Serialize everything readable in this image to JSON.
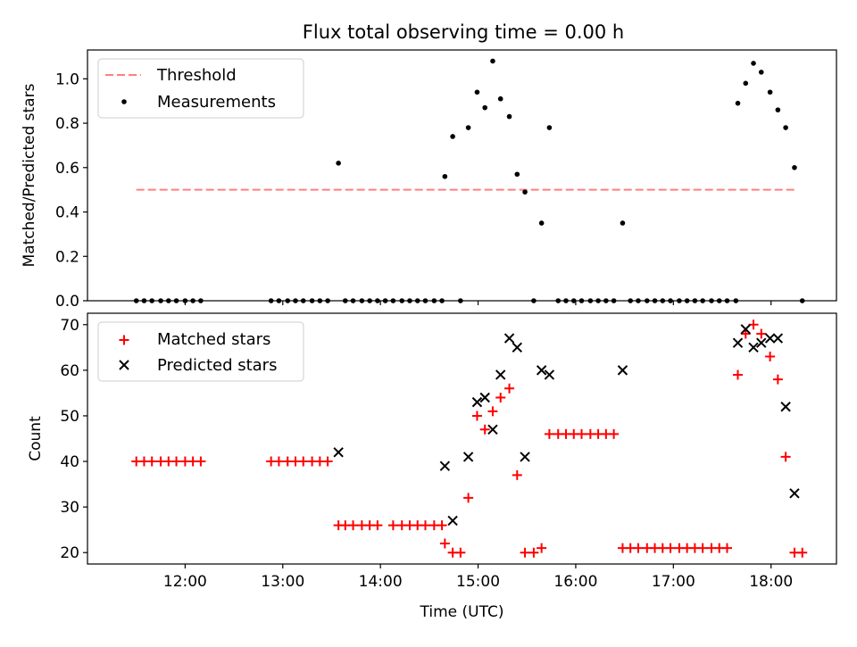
{
  "title": "Flux total observing time = 0.00 h",
  "colors": {
    "threshold": "#ff7f7f",
    "measurements": "#000000",
    "matched": "#ff0000",
    "predicted": "#000000"
  },
  "chart_data": [
    {
      "type": "scatter",
      "ylabel": "Matched/Predicted stars",
      "xlim": [
        11.0,
        18.67
      ],
      "ylim": [
        0.0,
        1.13
      ],
      "yticks": [
        "0.0",
        "0.2",
        "0.4",
        "0.6",
        "0.8",
        "1.0"
      ],
      "ytick_values": [
        0.0,
        0.2,
        0.4,
        0.6,
        0.8,
        1.0
      ],
      "legend_position": "upper-left",
      "threshold": {
        "name": "Threshold",
        "value": 0.5,
        "x_range": [
          11.5,
          18.27
        ]
      },
      "series": [
        {
          "name": "Measurements",
          "x": [
            11.5,
            11.58,
            11.66,
            11.75,
            11.83,
            11.91,
            12.0,
            12.08,
            12.16,
            12.88,
            12.96,
            13.05,
            13.13,
            13.21,
            13.3,
            13.38,
            13.46,
            13.57,
            13.64,
            13.72,
            13.81,
            13.89,
            13.97,
            14.05,
            14.13,
            14.22,
            14.3,
            14.38,
            14.46,
            14.55,
            14.63,
            14.66,
            14.74,
            14.82,
            14.9,
            14.99,
            15.07,
            15.15,
            15.23,
            15.32,
            15.4,
            15.48,
            15.57,
            15.65,
            15.73,
            15.82,
            15.9,
            15.98,
            16.06,
            16.15,
            16.23,
            16.31,
            16.39,
            16.48,
            16.56,
            16.64,
            16.73,
            16.81,
            16.89,
            16.97,
            17.06,
            17.14,
            17.22,
            17.3,
            17.39,
            17.47,
            17.55,
            17.64,
            17.66,
            17.74,
            17.82,
            17.9,
            17.99,
            18.07,
            18.15,
            18.24,
            18.32
          ],
          "y": [
            0,
            0,
            0,
            0,
            0,
            0,
            0,
            0,
            0,
            0,
            0,
            0,
            0,
            0,
            0,
            0,
            0,
            0.62,
            0,
            0,
            0,
            0,
            0,
            0,
            0,
            0,
            0,
            0,
            0,
            0,
            0,
            0.56,
            0.74,
            0,
            0.78,
            0.94,
            0.87,
            1.08,
            0.91,
            0.83,
            0.57,
            0.49,
            0,
            0.35,
            0.78,
            0,
            0,
            0,
            0,
            0,
            0,
            0,
            0,
            0.35,
            0,
            0,
            0,
            0,
            0,
            0,
            0,
            0,
            0,
            0,
            0,
            0,
            0,
            0,
            0.89,
            0.98,
            1.07,
            1.03,
            0.94,
            0.86,
            0.78,
            0.6,
            0
          ]
        }
      ]
    },
    {
      "type": "scatter",
      "xlabel": "Time (UTC)",
      "ylabel": "Count",
      "xlim": [
        11.0,
        18.67
      ],
      "ylim": [
        17.5,
        72.5
      ],
      "xticks": [
        "12:00",
        "13:00",
        "14:00",
        "15:00",
        "16:00",
        "17:00",
        "18:00"
      ],
      "xtick_values": [
        12,
        13,
        14,
        15,
        16,
        17,
        18
      ],
      "yticks": [
        "20",
        "30",
        "40",
        "50",
        "60",
        "70"
      ],
      "ytick_values": [
        20,
        30,
        40,
        50,
        60,
        70
      ],
      "legend_position": "upper-left",
      "series": [
        {
          "name": "Matched stars",
          "marker": "plus",
          "x": [
            11.5,
            11.58,
            11.66,
            11.75,
            11.83,
            11.91,
            12.0,
            12.08,
            12.16,
            12.88,
            12.96,
            13.05,
            13.13,
            13.21,
            13.3,
            13.38,
            13.46,
            13.57,
            13.64,
            13.72,
            13.81,
            13.89,
            13.97,
            14.13,
            14.22,
            14.3,
            14.38,
            14.46,
            14.55,
            14.63,
            14.66,
            14.74,
            14.82,
            14.9,
            14.99,
            15.07,
            15.15,
            15.23,
            15.32,
            15.4,
            15.48,
            15.57,
            15.65,
            15.73,
            15.82,
            15.9,
            15.98,
            16.06,
            16.15,
            16.23,
            16.31,
            16.39,
            16.48,
            16.56,
            16.64,
            16.73,
            16.81,
            16.89,
            16.97,
            17.06,
            17.14,
            17.22,
            17.3,
            17.39,
            17.47,
            17.55,
            17.66,
            17.74,
            17.82,
            17.9,
            17.99,
            18.07,
            18.15,
            18.24,
            18.32
          ],
          "y": [
            40,
            40,
            40,
            40,
            40,
            40,
            40,
            40,
            40,
            40,
            40,
            40,
            40,
            40,
            40,
            40,
            40,
            26,
            26,
            26,
            26,
            26,
            26,
            26,
            26,
            26,
            26,
            26,
            26,
            26,
            22,
            20,
            20,
            32,
            50,
            47,
            51,
            54,
            56,
            37,
            20,
            20,
            21,
            46,
            46,
            46,
            46,
            46,
            46,
            46,
            46,
            46,
            21,
            21,
            21,
            21,
            21,
            21,
            21,
            21,
            21,
            21,
            21,
            21,
            21,
            21,
            59,
            68,
            70,
            68,
            63,
            58,
            41,
            20,
            20
          ]
        },
        {
          "name": "Predicted stars",
          "marker": "x",
          "x": [
            13.57,
            14.66,
            14.74,
            14.9,
            14.99,
            15.07,
            15.15,
            15.23,
            15.32,
            15.4,
            15.48,
            15.65,
            15.73,
            16.48,
            17.66,
            17.74,
            17.82,
            17.9,
            17.99,
            18.07,
            18.15,
            18.24
          ],
          "y": [
            42,
            39,
            27,
            41,
            53,
            54,
            47,
            59,
            67,
            65,
            41,
            60,
            59,
            60,
            66,
            69,
            65,
            66,
            67,
            67,
            52,
            33
          ]
        }
      ]
    }
  ]
}
